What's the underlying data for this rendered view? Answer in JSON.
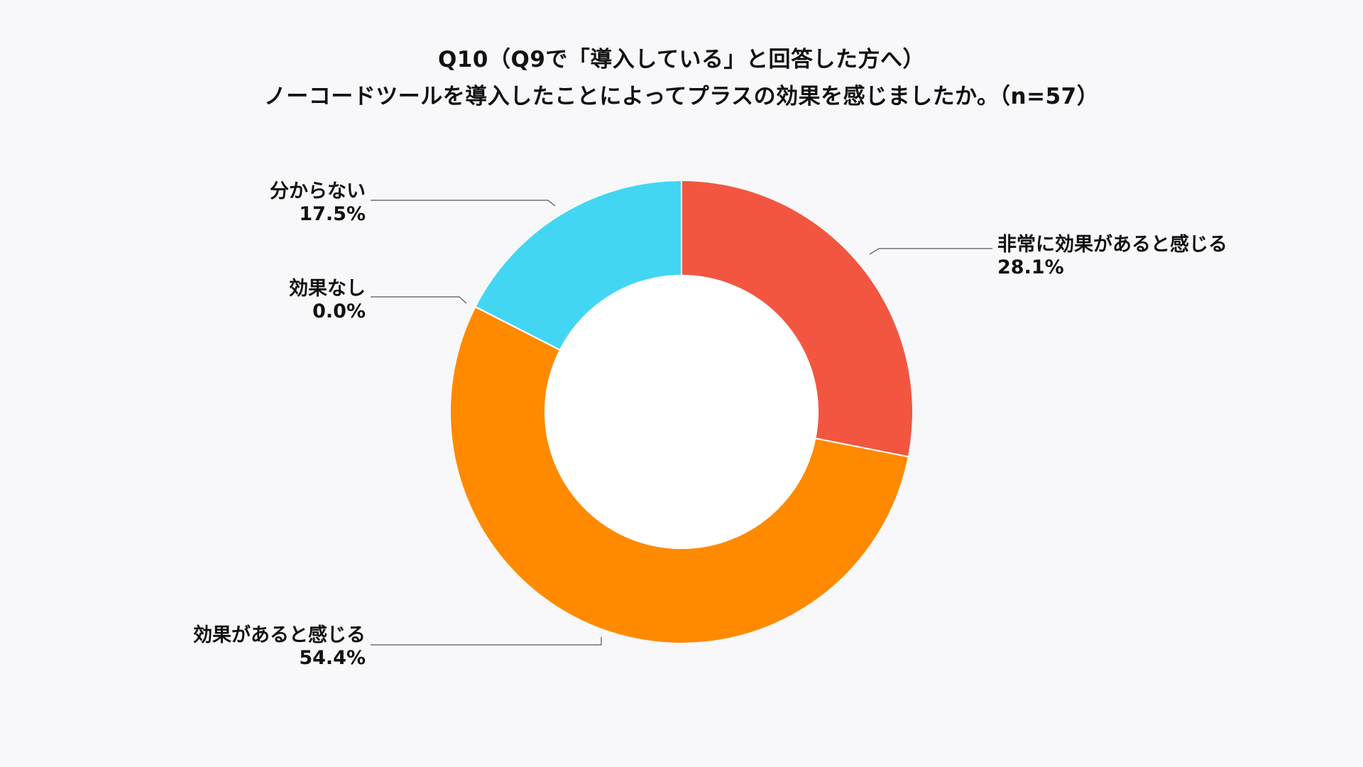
{
  "chart_data": {
    "type": "pie",
    "variant": "donut",
    "title": "Q10（Q9で「導入している」と回答した方へ）",
    "subtitle": "ノーコードツールを導入したことによってプラスの効果を感じましたか。（n=57）",
    "unit": "%",
    "categories": [
      "非常に効果があると感じる",
      "効果があると感じる",
      "効果なし",
      "分からない"
    ],
    "values": [
      28.1,
      54.4,
      0.0,
      17.5
    ],
    "value_labels": [
      "28.1%",
      "54.4%",
      "0.0%",
      "17.5%"
    ],
    "colors": [
      "#F25640",
      "#FF8A00",
      "#C9C9C9",
      "#42D6F3"
    ],
    "start_angle": "12 o'clock",
    "direction": "clockwise",
    "legend": "none",
    "labels": "outside-with-leader-lines"
  }
}
